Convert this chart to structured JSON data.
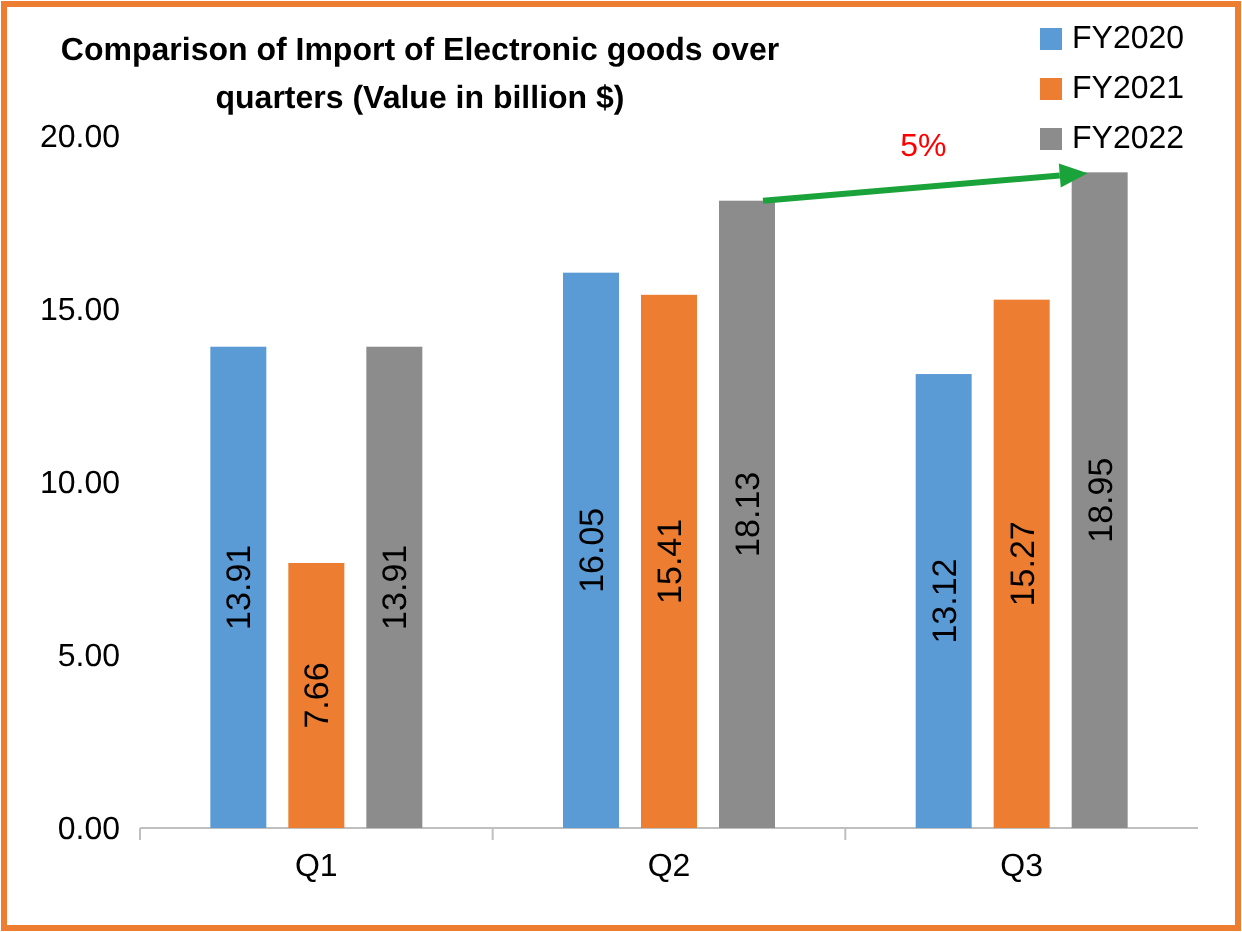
{
  "chart_data": {
    "type": "bar",
    "title": "Comparison of Import of Electronic goods over quarters (Value in billion $)",
    "categories": [
      "Q1",
      "Q2",
      "Q3"
    ],
    "series": [
      {
        "name": "FY2020",
        "color": "#5b9bd5",
        "values": [
          13.91,
          16.05,
          13.12
        ]
      },
      {
        "name": "FY2021",
        "color": "#ed7d31",
        "values": [
          7.66,
          15.41,
          15.27
        ]
      },
      {
        "name": "FY2022",
        "color": "#8c8c8c",
        "values": [
          13.91,
          18.13,
          18.95
        ]
      }
    ],
    "ylim": [
      0,
      20
    ],
    "yticks": [
      {
        "value": 0,
        "label": "0.00"
      },
      {
        "value": 5,
        "label": "5.00"
      },
      {
        "value": 10,
        "label": "10.00"
      },
      {
        "value": 15,
        "label": "15.00"
      },
      {
        "value": 20,
        "label": "20.00"
      }
    ],
    "data_labels": true,
    "legend": "top right",
    "grid": false,
    "annotations": [
      "5%"
    ]
  }
}
